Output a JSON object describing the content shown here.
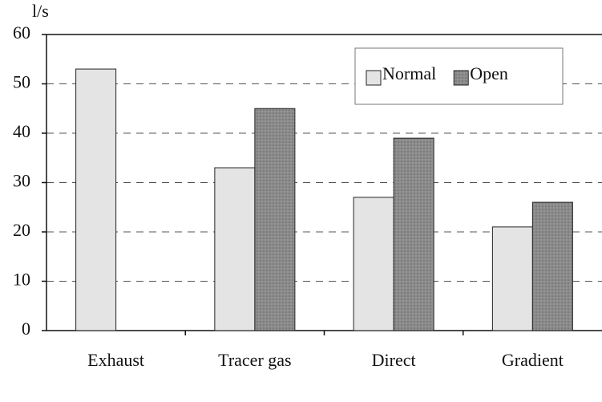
{
  "chart_data": {
    "type": "bar",
    "y_label": "l/s",
    "categories": [
      "Exhaust",
      "Tracer gas",
      "Direct",
      "Gradient"
    ],
    "series": [
      {
        "name": "Normal",
        "color": "#e4e4e4",
        "values": [
          53,
          33,
          27,
          21
        ]
      },
      {
        "name": "Open",
        "color": "#8c8c8c",
        "values": [
          null,
          45,
          39,
          26
        ]
      }
    ],
    "ylim": [
      0,
      60
    ],
    "yticks": [
      0,
      10,
      20,
      30,
      40,
      50,
      60
    ],
    "grid": true,
    "legend": "upper right"
  }
}
